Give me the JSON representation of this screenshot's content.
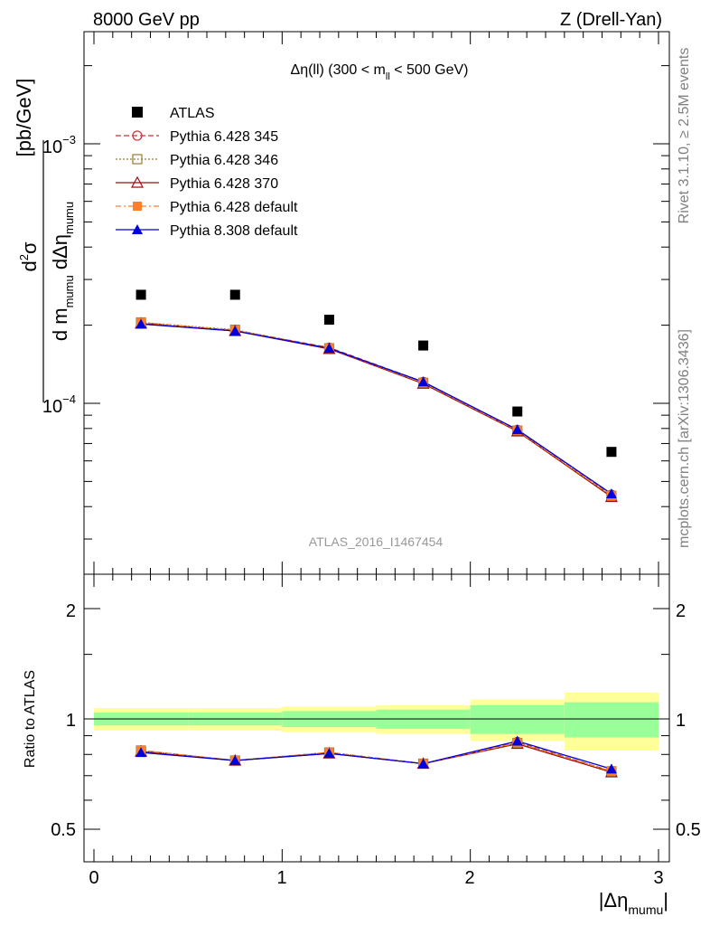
{
  "header": {
    "left": "8000 GeV pp",
    "right": "Z (Drell-Yan)",
    "subtitle_prefix": "Δη(ll) (300 < m",
    "subtitle_sub": "ll",
    "subtitle_suffix": " < 500 GeV)",
    "watermark": "ATLAS_2016_I1467454"
  },
  "side_labels": {
    "rivet": "Rivet 3.1.10, ≥ 2.5M events",
    "mcplots": "mcplots.cern.ch [arXiv:1306.3436]"
  },
  "axes": {
    "y_main": {
      "num_d": "d",
      "num_exp": "2",
      "num_sigma": "σ",
      "den_dm": "d m",
      "den_mumu1": "mumu",
      "den_deta": " dΔη",
      "den_mumu2": "mumu",
      "unit": "[pb/GeV]"
    },
    "y_ratio": "Ratio to ATLAS",
    "x_main": "|Δη",
    "x_sub": "mumu",
    "x_close": "|",
    "x_ticks": [
      "0",
      "1",
      "2",
      "3"
    ],
    "y_main_ticks": [
      {
        "base": "10",
        "exp": "−4"
      },
      {
        "base": "10",
        "exp": "−3"
      }
    ],
    "y_ratio_ticks": [
      "0.5",
      "1",
      "2"
    ],
    "y_ratio_ticks_right": [
      "0.5",
      "1",
      "2"
    ]
  },
  "legend": [
    {
      "label": "ATLAS",
      "color": "#000000",
      "marker": "filled-square",
      "line": "none"
    },
    {
      "label": "Pythia 6.428 345",
      "color": "#cc3333",
      "marker": "open-circle",
      "line": "dashed"
    },
    {
      "label": "Pythia 6.428 346",
      "color": "#997a33",
      "marker": "open-square",
      "line": "dotted"
    },
    {
      "label": "Pythia 6.428 370",
      "color": "#991111",
      "marker": "open-triangle",
      "line": "solid"
    },
    {
      "label": "Pythia 6.428 default",
      "color": "#ff7f2a",
      "marker": "filled-square",
      "line": "dashdot"
    },
    {
      "label": "Pythia 8.308 default",
      "color": "#0000dd",
      "marker": "filled-triangle",
      "line": "solid"
    }
  ],
  "chart_data": {
    "type": "scatter",
    "x_log": false,
    "y_log": true,
    "xlim": [
      -0.1,
      3.05
    ],
    "ylim": [
      3e-05,
      0.0031
    ],
    "ratio_ylim": [
      0.4,
      2.4
    ],
    "ratio_y_log": true,
    "x": [
      0.25,
      0.75,
      1.25,
      1.75,
      2.25,
      2.75
    ],
    "x_edges": [
      0,
      0.5,
      1.0,
      1.5,
      2.0,
      2.5,
      3.0
    ],
    "atlas": [
      0.000262,
      0.000262,
      0.00021,
      0.000167,
      9.3e-05,
      6.5e-05
    ],
    "atlas_band_stat": [
      0.04,
      0.04,
      0.05,
      0.06,
      0.09,
      0.11
    ],
    "atlas_band_total": [
      0.07,
      0.07,
      0.08,
      0.09,
      0.13,
      0.18
    ],
    "series": [
      {
        "name": "Pythia 6.428 345",
        "values": [
          0.000204,
          0.000191,
          0.000164,
          0.000121,
          7.9e-05,
          4.45e-05
        ]
      },
      {
        "name": "Pythia 6.428 346",
        "values": [
          0.000205,
          0.000192,
          0.000163,
          0.00012,
          7.85e-05,
          4.4e-05
        ]
      },
      {
        "name": "Pythia 6.428 370",
        "values": [
          0.000203,
          0.00019,
          0.000162,
          0.000119,
          7.8e-05,
          4.36e-05
        ]
      },
      {
        "name": "Pythia 6.428 default",
        "values": [
          0.000205,
          0.000191,
          0.000163,
          0.00012,
          7.85e-05,
          4.4e-05
        ]
      },
      {
        "name": "Pythia 8.308 default",
        "values": [
          0.000202,
          0.00019,
          0.000163,
          0.000121,
          7.92e-05,
          4.48e-05
        ]
      }
    ],
    "ratios": [
      {
        "name": "Pythia 6.428 345",
        "values": [
          0.82,
          0.77,
          0.81,
          0.755,
          0.865,
          0.72
        ]
      },
      {
        "name": "Pythia 6.428 346",
        "values": [
          0.82,
          0.77,
          0.81,
          0.755,
          0.86,
          0.72
        ]
      },
      {
        "name": "Pythia 6.428 370",
        "values": [
          0.815,
          0.77,
          0.805,
          0.755,
          0.855,
          0.715
        ]
      },
      {
        "name": "Pythia 6.428 default",
        "values": [
          0.82,
          0.77,
          0.81,
          0.755,
          0.86,
          0.72
        ]
      },
      {
        "name": "Pythia 8.308 default",
        "values": [
          0.81,
          0.77,
          0.805,
          0.755,
          0.87,
          0.73
        ]
      }
    ]
  }
}
